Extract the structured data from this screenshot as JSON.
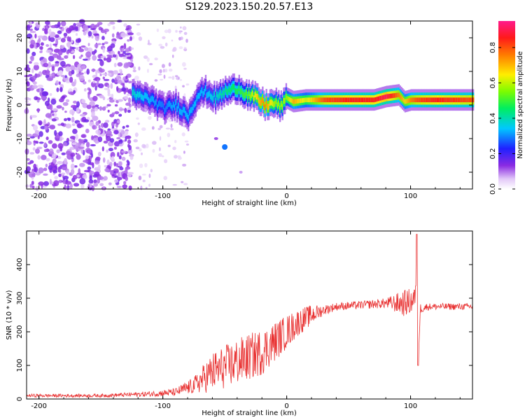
{
  "title": "S129.2023.150.20.57.E13",
  "colorbar": {
    "label": "Normalized spectral amplitude",
    "ticks": [
      "0.0",
      "0.2",
      "0.4",
      "0.6",
      "0.8"
    ],
    "tick_values": [
      0.0,
      0.2,
      0.4,
      0.6,
      0.8
    ]
  },
  "chart_data": [
    {
      "type": "heatmap",
      "title": "",
      "xlabel": "Height of straight line (km)",
      "ylabel": "Frequency (Hz)",
      "xlim": [
        -210,
        150
      ],
      "ylim": [
        -25,
        25
      ],
      "x_ticks": [
        -200,
        -100,
        0,
        100
      ],
      "x_tick_labels": [
        "-200",
        "-100",
        "0",
        "100"
      ],
      "y_ticks": [
        -20,
        -10,
        0,
        10,
        20
      ],
      "y_tick_labels": [
        "-20",
        "-10",
        "0",
        "10",
        "20"
      ],
      "value_range": [
        0,
        0.95
      ],
      "ridge": {
        "x": [
          -125,
          -112,
          -100,
          -90,
          -80,
          -72,
          -66,
          -58,
          -50,
          -40,
          -32,
          -25,
          -18,
          -10,
          -5,
          0,
          5,
          15,
          30,
          50,
          70,
          80,
          90,
          95,
          100,
          105,
          120,
          150
        ],
        "frequency": [
          3,
          2,
          -1,
          0,
          -3,
          3,
          4,
          2,
          4,
          5,
          3,
          2,
          0,
          0.5,
          -0.5,
          2,
          1,
          1.5,
          1.5,
          1.5,
          1.5,
          2.5,
          3,
          1,
          1.5,
          1.5,
          1.5,
          1.5
        ],
        "amplitude": [
          0.4,
          0.35,
          0.3,
          0.35,
          0.35,
          0.35,
          0.35,
          0.4,
          0.45,
          0.5,
          0.55,
          0.7,
          0.8,
          0.6,
          0.6,
          0.6,
          0.75,
          0.65,
          0.85,
          0.9,
          0.9,
          0.95,
          0.8,
          0.7,
          0.8,
          0.85,
          0.9,
          0.85
        ]
      },
      "noise_region_x": [
        -210,
        -100
      ]
    },
    {
      "type": "line",
      "title": "",
      "xlabel": "Height of straight line (km)",
      "ylabel": "SNR (10 * v/v)",
      "xlim": [
        -210,
        150
      ],
      "ylim": [
        0,
        500
      ],
      "x_ticks": [
        -200,
        -100,
        0,
        100
      ],
      "x_tick_labels": [
        "-200",
        "-100",
        "0",
        "100"
      ],
      "y_ticks": [
        0,
        100,
        200,
        300,
        400
      ],
      "y_tick_labels": [
        "0",
        "100",
        "200",
        "300",
        "400"
      ],
      "color": "#e83030",
      "trend": {
        "x": [
          -210,
          -150,
          -110,
          -90,
          -75,
          -60,
          -40,
          -20,
          0,
          10,
          20,
          30,
          40,
          60,
          80,
          95,
          100,
          104,
          105,
          106,
          108,
          115,
          130,
          150
        ],
        "snr": [
          10,
          10,
          15,
          20,
          40,
          80,
          110,
          140,
          200,
          230,
          250,
          265,
          275,
          280,
          285,
          285,
          290,
          300,
          490,
          100,
          270,
          275,
          275,
          275
        ],
        "spread": [
          5,
          5,
          8,
          12,
          25,
          60,
          70,
          70,
          50,
          40,
          30,
          15,
          12,
          12,
          15,
          40,
          40,
          40,
          0,
          0,
          15,
          10,
          10,
          10
        ]
      }
    }
  ]
}
